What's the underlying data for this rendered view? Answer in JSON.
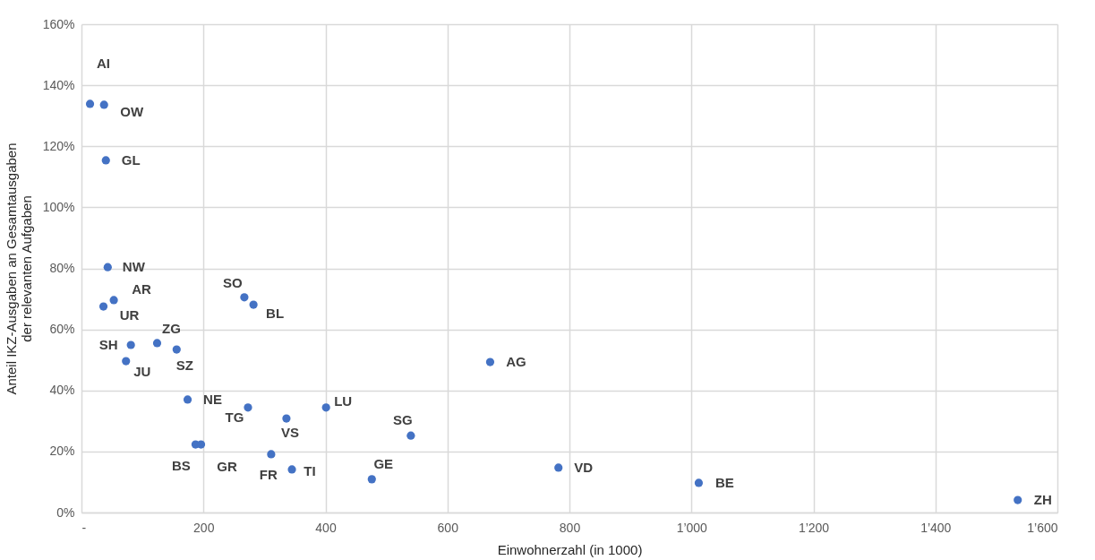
{
  "chart_data": {
    "type": "scatter",
    "xlabel": "Einwohnerzahl (in 1000)",
    "ylabel": "Anteil IKZ-Ausgaben an Gesamtausgaben\nder relevanten Aufgaben",
    "x": [
      14,
      37,
      40,
      43,
      53,
      36,
      124,
      81,
      73,
      156,
      267,
      282,
      174,
      273,
      336,
      401,
      540,
      670,
      187,
      196,
      311,
      345,
      476,
      782,
      1012,
      1535
    ],
    "series": [
      {
        "color": "#4472c4",
        "values": [
          133.9,
          133.6,
          115.4,
          80.4,
          69.6,
          67.5,
          55.5,
          54.9,
          49.6,
          53.4,
          70.5,
          68.1,
          37,
          34.4,
          30.8,
          34.4,
          25.2,
          49.3,
          22.3,
          22.3,
          19.1,
          14.1,
          10.9,
          14.7,
          9.7,
          4.1
        ],
        "value_labels": [
          "AI",
          "OW",
          "GL",
          "NW",
          "AR",
          "UR",
          "ZG",
          "SH",
          "JU",
          "SZ",
          "SO",
          "BL",
          "NE",
          "TG",
          "VS",
          "LU",
          "SG",
          "AG",
          "BS",
          "GR",
          "FR",
          "TI",
          "GE",
          "VD",
          "BE",
          "ZH"
        ]
      }
    ],
    "xlim": [
      0,
      1600
    ],
    "xticks": [
      {
        "value": 0,
        "label": "-"
      },
      200,
      400,
      600,
      800,
      {
        "value": 1000,
        "label": "1’000"
      },
      {
        "value": 1200,
        "label": "1’200"
      },
      {
        "value": 1400,
        "label": "1’400"
      },
      {
        "value": 1600,
        "label": "1’600"
      }
    ],
    "ylim": [
      0,
      160
    ],
    "yticks": [
      {
        "value": 0,
        "label": "0%"
      },
      {
        "value": 20,
        "label": "20%"
      },
      {
        "value": 40,
        "label": "40%"
      },
      {
        "value": 60,
        "label": "60%"
      },
      {
        "value": 80,
        "label": "80%"
      },
      {
        "value": 100,
        "label": "100%"
      },
      {
        "value": 120,
        "label": "120%"
      },
      {
        "value": 140,
        "label": "140%"
      },
      {
        "value": 160,
        "label": "160%"
      }
    ],
    "grid": true,
    "marker": "circle"
  }
}
